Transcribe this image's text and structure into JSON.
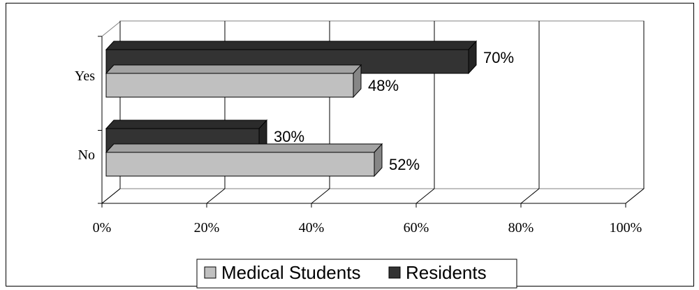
{
  "chart_data": {
    "type": "bar",
    "orientation": "horizontal",
    "categories": [
      "Yes",
      "No"
    ],
    "series": [
      {
        "name": "Medical Students",
        "values": [
          48,
          52
        ],
        "color": "#c0c0c0",
        "labels": [
          "48%",
          "52%"
        ]
      },
      {
        "name": "Residents",
        "values": [
          70,
          30
        ],
        "color": "#333333",
        "labels": [
          "70%",
          "30%"
        ]
      }
    ],
    "x_ticks": [
      "0%",
      "20%",
      "40%",
      "60%",
      "80%",
      "100%"
    ],
    "xlim": [
      0,
      100
    ],
    "grid": true,
    "legend_position": "bottom"
  }
}
